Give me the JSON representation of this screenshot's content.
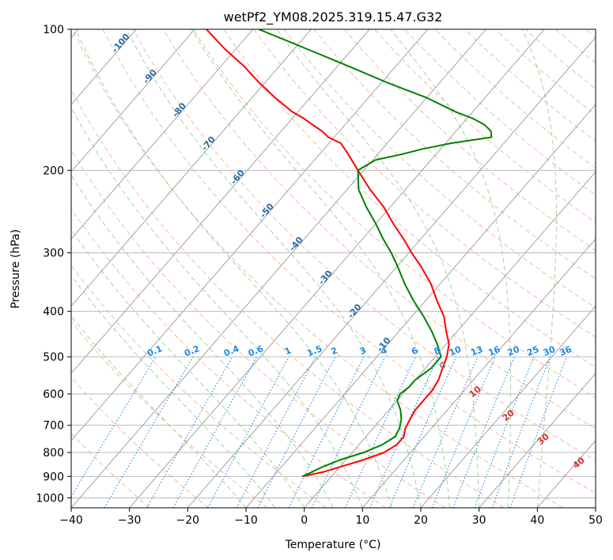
{
  "chart_data": {
    "type": "line",
    "diagram": "skew-T log-P",
    "title": "wetPf2_YM08.2025.319.15.47.G32",
    "xlabel": "Temperature (°C)",
    "ylabel": "Pressure (hPa)",
    "xlim": [
      -40,
      50
    ],
    "ylim_hpa": [
      1050,
      100
    ],
    "x_ticks": [
      "−40",
      "−30",
      "−20",
      "−10",
      "0",
      "10",
      "20",
      "30",
      "40",
      "50"
    ],
    "x_tick_values": [
      -40,
      -30,
      -20,
      -10,
      0,
      10,
      20,
      30,
      40,
      50
    ],
    "y_ticks": [
      "100",
      "200",
      "300",
      "400",
      "500",
      "600",
      "700",
      "800",
      "900",
      "1000"
    ],
    "y_tick_values": [
      100,
      200,
      300,
      400,
      500,
      600,
      700,
      800,
      900,
      1000
    ],
    "colors": {
      "temperature": "#ff0000",
      "dewpoint": "#008000",
      "isotherm": "#999999",
      "dry_adiabat": "#f4a582",
      "moist_adiabat": "#8fc98f",
      "mixing_ratio": "#1e88e5",
      "isotherm_label": "#2b6ca3",
      "theta_label": "#d32f2f",
      "zero_label": "#888888"
    },
    "series": [
      {
        "name": "Temperature",
        "pressure": [
          900,
          880,
          860,
          830,
          800,
          770,
          740,
          710,
          680,
          650,
          620,
          590,
          560,
          530,
          500,
          470,
          440,
          410,
          380,
          350,
          320,
          300,
          280,
          260,
          240,
          220,
          200,
          185,
          175,
          170,
          165,
          160,
          155,
          150,
          140,
          130,
          120,
          110,
          100
        ],
        "temperature_c": [
          -5,
          -2,
          0,
          3,
          5.5,
          6.5,
          6.5,
          5.5,
          5,
          4.5,
          4.5,
          4.5,
          4,
          3,
          2,
          0.5,
          -2,
          -4.5,
          -8,
          -11.5,
          -16,
          -19.5,
          -23,
          -27,
          -31,
          -36,
          -41,
          -45,
          -48,
          -51,
          -53,
          -55.5,
          -58,
          -61,
          -66,
          -71,
          -76,
          -82,
          -88
        ]
      },
      {
        "name": "Dewpoint",
        "pressure": [
          900,
          880,
          860,
          830,
          800,
          770,
          740,
          710,
          680,
          650,
          620,
          600,
          580,
          560,
          530,
          500,
          470,
          440,
          410,
          380,
          350,
          320,
          300,
          280,
          260,
          240,
          220,
          200,
          190,
          185,
          180,
          175,
          170,
          165,
          160,
          155,
          150,
          140,
          130,
          120,
          110,
          100
        ],
        "dewpoint_c": [
          -5,
          -4,
          -3,
          -1,
          2,
          4,
          5,
          4.5,
          3.5,
          2,
          0,
          -0.5,
          0,
          0,
          1,
          1,
          -1.5,
          -4.5,
          -8,
          -12,
          -16,
          -20,
          -23,
          -26.5,
          -30,
          -34,
          -38,
          -41,
          -39.5,
          -36,
          -33,
          -29,
          -23,
          -24,
          -26,
          -29,
          -33,
          -40,
          -49,
          -58,
          -68,
          -79
        ]
      }
    ],
    "isotherm_labels": [
      "-100",
      "-90",
      "-80",
      "-70",
      "-60",
      "-50",
      "-40",
      "-30",
      "-20",
      "-10"
    ],
    "isotherm_label_values": [
      -100,
      -90,
      -80,
      -70,
      -60,
      -50,
      -40,
      -30,
      -20,
      -10
    ],
    "mixing_ratio_labels": [
      "0.1",
      "0.2",
      "0.4",
      "0.6",
      "1",
      "1.5",
      "2",
      "3",
      "4",
      "6",
      "8",
      "10",
      "13",
      "16",
      "20",
      "25",
      "30",
      "36"
    ],
    "mixing_ratio_values": [
      0.1,
      0.2,
      0.4,
      0.6,
      1,
      1.5,
      2,
      3,
      4,
      6,
      8,
      10,
      13,
      16,
      20,
      25,
      30,
      36
    ],
    "theta_e_labels": [
      "0",
      "10",
      "20",
      "30",
      "40"
    ]
  }
}
